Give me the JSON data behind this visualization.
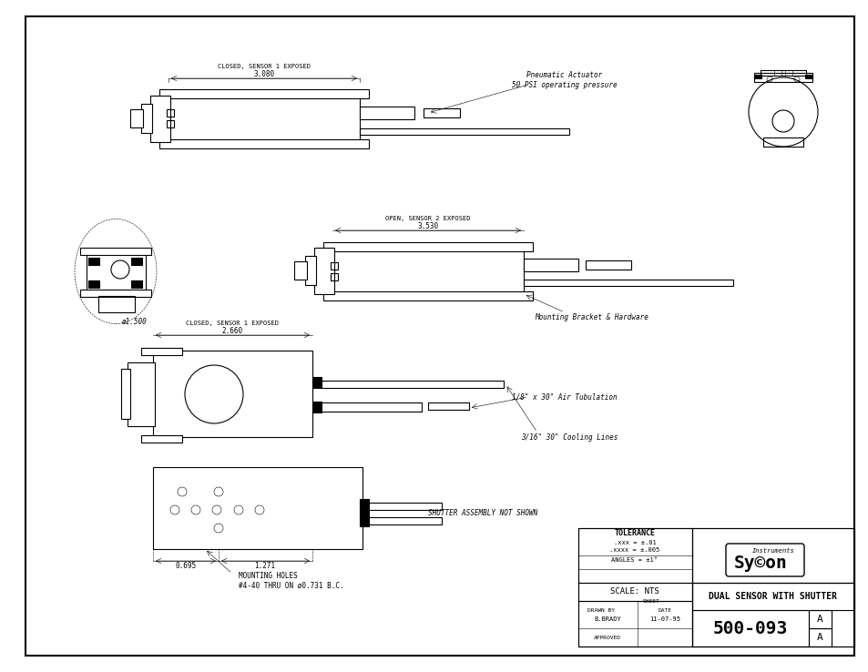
{
  "bg_color": "#ffffff",
  "border_color": "#000000",
  "line_color": "#000000",
  "line_width": 0.8,
  "thin_line": 0.4,
  "title": "DUAL SENSOR WITH SHUTTER",
  "drawing_number": "500-093",
  "revision": "A",
  "scale": "NTS",
  "drawn_by": "B.BRADY",
  "date": "11-07-95",
  "tolerance_xxx": ".01",
  "tolerance_xxxx": ".005",
  "tolerance_angles": "1",
  "annotations": [
    "CLOSED, SENSOR 1 EXPOSED",
    "OPEN, SENSOR 2 EXPOSED",
    "CLOSED, SENSOR 1 EXPOSED",
    "Pneumatic Actuator\n50 PSI operating pressure",
    "Mounting Bracket & Hardware",
    "1/8\" x 30\" Air Tubulation",
    "3/16\" 30\" Cooling Lines",
    "SHUTTER ASSEMBLY NOT SHOWN",
    "MOUNTING HOLES\n#4-40 THRU ON ø0.731 B.C.",
    "ø1.500"
  ],
  "dim_3080": "3.080",
  "dim_3530": "3.530",
  "dim_2660": "2.660",
  "dim_0695": "0.695",
  "dim_1271": "1.271"
}
